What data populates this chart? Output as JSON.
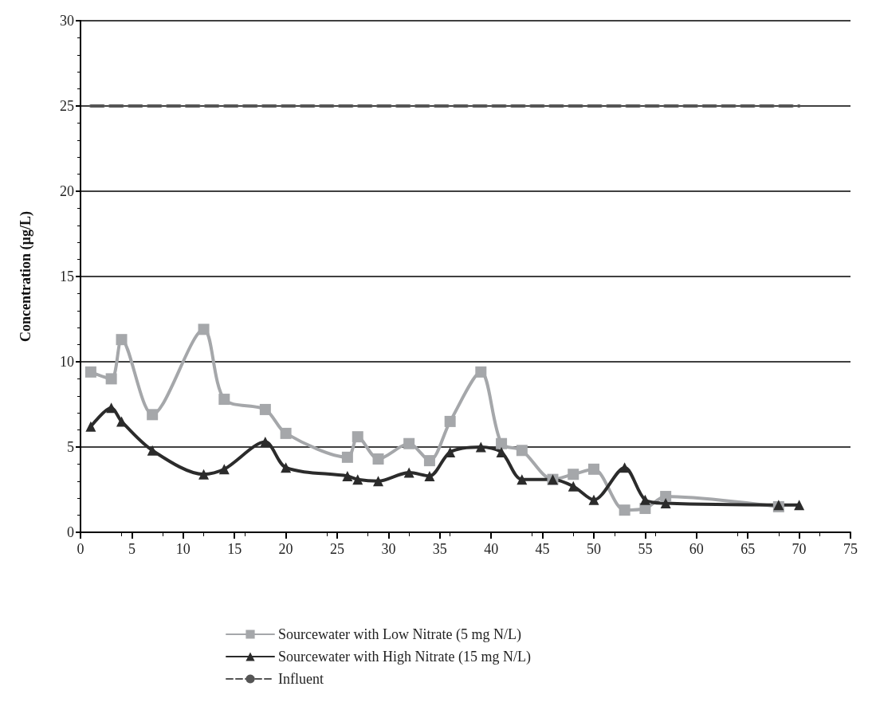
{
  "chart_data": {
    "type": "line",
    "ylabel": "Concentration (µg/L)",
    "xlim": [
      0,
      75
    ],
    "xticks": [
      0,
      5,
      10,
      15,
      20,
      25,
      30,
      35,
      40,
      45,
      50,
      55,
      60,
      65,
      70,
      75
    ],
    "ylim": [
      0,
      30
    ],
    "yticks": [
      0,
      5,
      10,
      15,
      20,
      25,
      30
    ],
    "grid": "y",
    "legend": "bottom",
    "series": [
      {
        "name": "Sourcewater with Low Nitrate (5 mg N/L)",
        "color": "#a5a7aa",
        "marker": "square",
        "x": [
          1,
          3,
          4,
          7,
          12,
          14,
          18,
          20,
          26,
          27,
          29,
          32,
          34,
          36,
          39,
          41,
          43,
          46,
          48,
          50,
          53,
          55,
          57,
          68
        ],
        "values": [
          9.4,
          9.0,
          11.3,
          6.9,
          11.9,
          7.8,
          7.2,
          5.8,
          4.4,
          5.6,
          4.3,
          5.2,
          4.2,
          6.5,
          9.4,
          5.2,
          4.8,
          3.1,
          3.4,
          3.7,
          1.3,
          1.4,
          2.1,
          1.5
        ]
      },
      {
        "name": "Sourcewater with High Nitrate (15 mg N/L)",
        "color": "#2b2b2b",
        "marker": "triangle",
        "x": [
          1,
          3,
          4,
          7,
          12,
          14,
          18,
          20,
          26,
          27,
          29,
          32,
          34,
          36,
          39,
          41,
          43,
          46,
          48,
          50,
          53,
          55,
          57,
          68,
          70
        ],
        "values": [
          6.2,
          7.3,
          6.5,
          4.8,
          3.4,
          3.7,
          5.3,
          3.8,
          3.3,
          3.1,
          3.0,
          3.5,
          3.3,
          4.7,
          5.0,
          4.7,
          3.1,
          3.1,
          2.7,
          1.9,
          3.8,
          1.9,
          1.7,
          1.6,
          1.6
        ]
      },
      {
        "name": "Influent",
        "color": "#555555",
        "marker": "none",
        "line_style": "dashed",
        "x": [
          1,
          70
        ],
        "values": [
          25,
          25
        ]
      }
    ]
  }
}
